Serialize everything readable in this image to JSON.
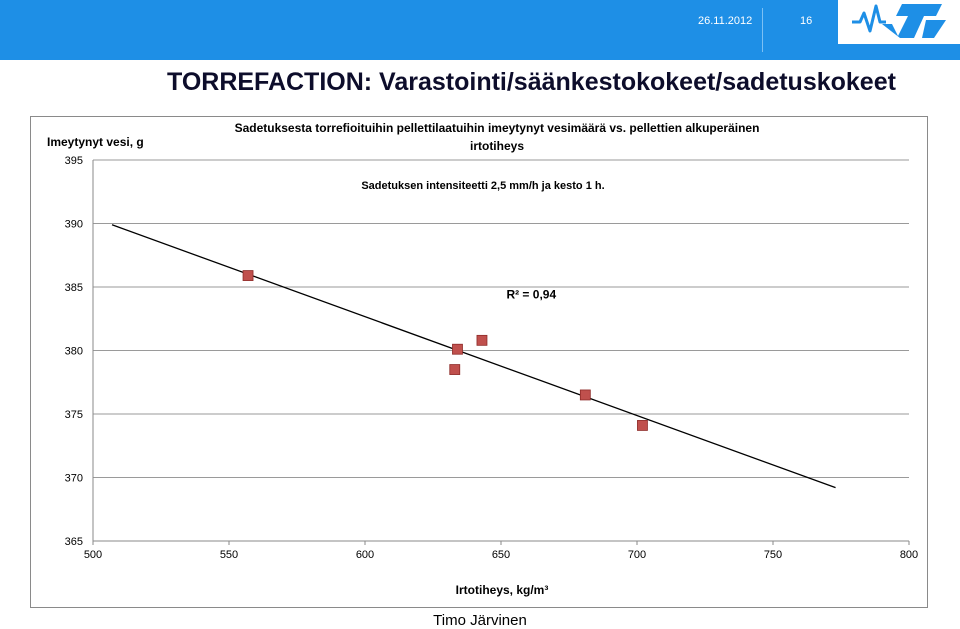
{
  "header": {
    "date": "26.11.2012",
    "page_number": "16",
    "logo_text": "VTT",
    "logo_icon": "vtt-logo-icon",
    "band_color": "#1e8fe6"
  },
  "slide": {
    "title": "TORREFACTION: Varastointi/säänkestokokeet/sadetuskokeet"
  },
  "footer": {
    "author": "Timo Järvinen"
  },
  "chart_data": {
    "type": "scatter",
    "title_line1": "Sadetuksesta torrefioituihin pellettilaatuihin imeytynyt vesimäärä vs. pellettien alkuperäinen",
    "title_line2": "irtotiheys",
    "subtitle": "Sadetuksen intensiteetti 2,5 mm/h ja kesto 1 h.",
    "xlabel": "Irtotiheys, kg/m³",
    "ylabel": "Imeytynyt vesi, g",
    "xlim": [
      500,
      800
    ],
    "ylim": [
      365,
      395
    ],
    "xticks": [
      500,
      550,
      600,
      650,
      700,
      750,
      800
    ],
    "yticks": [
      365,
      370,
      375,
      380,
      385,
      390,
      395
    ],
    "grid": true,
    "points": [
      {
        "x": 557,
        "y": 385.9
      },
      {
        "x": 633,
        "y": 378.5
      },
      {
        "x": 634,
        "y": 380.1
      },
      {
        "x": 643,
        "y": 380.8
      },
      {
        "x": 681,
        "y": 376.5
      },
      {
        "x": 702,
        "y": 374.1
      }
    ],
    "trendline": {
      "x": [
        507,
        773
      ],
      "y": [
        389.9,
        369.2
      ]
    },
    "annotation": "R² = 0,94",
    "annotation_pos": {
      "x": 652,
      "y": 384.1
    },
    "marker_color": "#c0504d",
    "marker_edge": "#8e2b28",
    "trend_color": "#000000"
  }
}
